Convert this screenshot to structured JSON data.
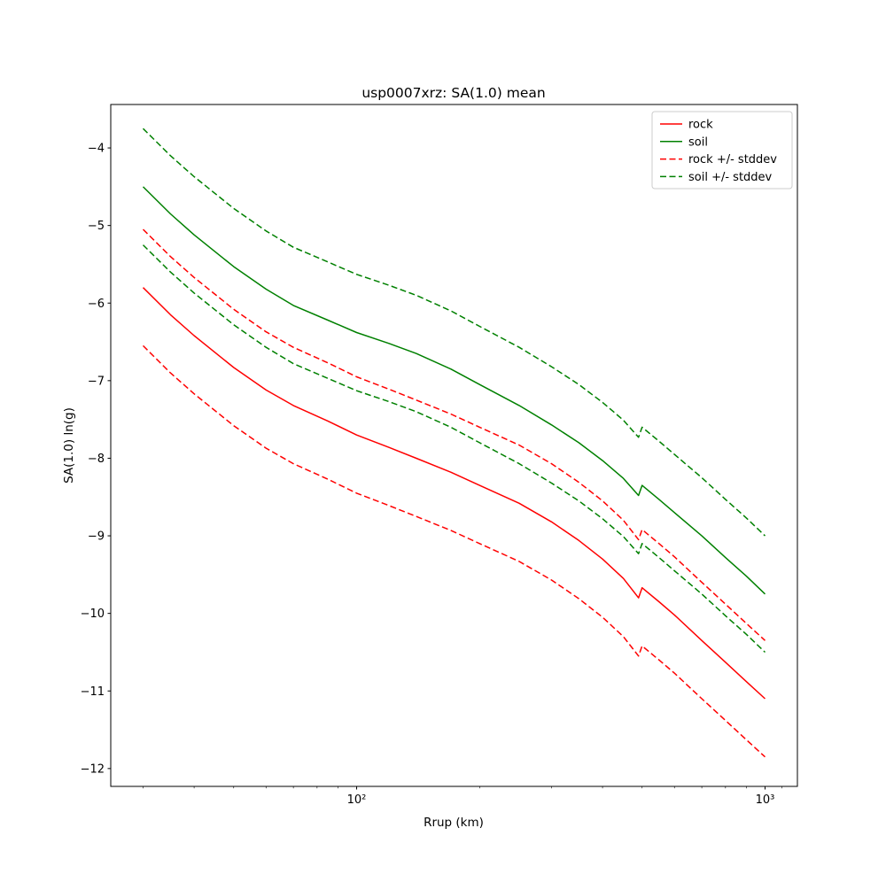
{
  "chart_data": {
    "type": "line",
    "title": "usp0007xrz: SA(1.0) mean",
    "xlabel": "Rrup (km)",
    "ylabel": "SA(1.0) ln(g)",
    "x_scale": "log",
    "grid": false,
    "xlim": [
      25,
      1200
    ],
    "ylim": [
      -12.23,
      -3.44
    ],
    "x_ticks_major": [
      {
        "value": 100,
        "label": "10²"
      },
      {
        "value": 1000,
        "label": "10³"
      }
    ],
    "x_ticks_minor": [
      30,
      40,
      50,
      60,
      70,
      80,
      90,
      200,
      300,
      400,
      500,
      600,
      700,
      800,
      900,
      1100
    ],
    "y_ticks": [
      -4,
      -5,
      -6,
      -7,
      -8,
      -9,
      -10,
      -11,
      -12
    ],
    "x": [
      30,
      35,
      40,
      50,
      60,
      70,
      85,
      100,
      120,
      140,
      170,
      200,
      250,
      300,
      350,
      400,
      450,
      490,
      500,
      550,
      600,
      700,
      800,
      900,
      1000
    ],
    "series": [
      {
        "name": "rock",
        "color": "#ff0000",
        "style": "solid",
        "mean": [
          -5.8,
          -6.15,
          -6.42,
          -6.83,
          -7.12,
          -7.32,
          -7.52,
          -7.7,
          -7.86,
          -8.0,
          -8.18,
          -8.35,
          -8.58,
          -8.82,
          -9.06,
          -9.3,
          -9.55,
          -9.8,
          -9.67,
          -9.85,
          -10.02,
          -10.35,
          -10.63,
          -10.88,
          -11.1
        ]
      },
      {
        "name": "soil",
        "color": "#008000",
        "style": "solid",
        "mean": [
          -4.5,
          -4.85,
          -5.12,
          -5.53,
          -5.82,
          -6.03,
          -6.22,
          -6.38,
          -6.52,
          -6.65,
          -6.85,
          -7.05,
          -7.32,
          -7.57,
          -7.8,
          -8.03,
          -8.26,
          -8.48,
          -8.35,
          -8.53,
          -8.7,
          -9.0,
          -9.28,
          -9.52,
          -9.75
        ]
      }
    ],
    "stddev": {
      "rock": 0.75,
      "soil": 0.75
    },
    "legend": {
      "position": "upper right",
      "items": [
        {
          "label": "rock",
          "color": "#ff0000",
          "dash": false
        },
        {
          "label": "soil",
          "color": "#008000",
          "dash": false
        },
        {
          "label": "rock +/- stddev",
          "color": "#ff0000",
          "dash": true
        },
        {
          "label": "soil +/- stddev",
          "color": "#008000",
          "dash": true
        }
      ]
    }
  }
}
